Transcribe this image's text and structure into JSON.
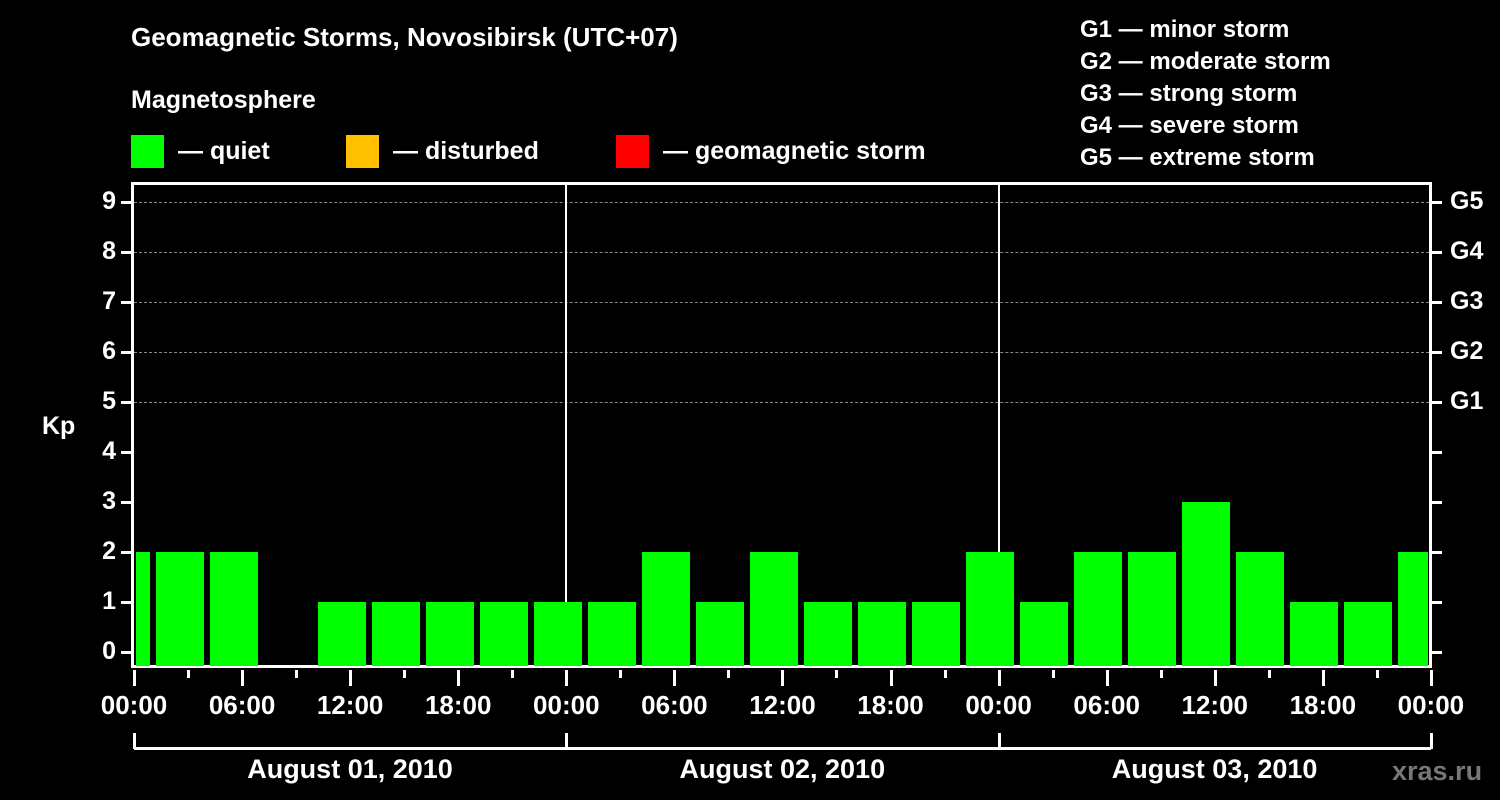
{
  "header": {
    "title": "Geomagnetic Storms, Novosibirsk (UTC+07)",
    "subtitle": "Magnetosphere"
  },
  "legend": [
    {
      "label": "— quiet",
      "color": "#00ff00"
    },
    {
      "label": "— disturbed",
      "color": "#ffc000"
    },
    {
      "label": "— geomagnetic storm",
      "color": "#ff0000"
    }
  ],
  "storm_scale": [
    "G1 — minor storm",
    "G2 — moderate storm",
    "G3 — strong storm",
    "G4 — severe storm",
    "G5 — extreme storm"
  ],
  "axes": {
    "ylabel": "Kp",
    "yticks": [
      "0",
      "1",
      "2",
      "3",
      "4",
      "5",
      "6",
      "7",
      "8",
      "9"
    ],
    "right_ticks": [
      "G1",
      "G2",
      "G3",
      "G4",
      "G5"
    ],
    "xticks": [
      "00:00",
      "06:00",
      "12:00",
      "18:00",
      "00:00",
      "06:00",
      "12:00",
      "18:00",
      "00:00",
      "06:00",
      "12:00",
      "18:00",
      "00:00"
    ],
    "dates": [
      "August 01, 2010",
      "August 02, 2010",
      "August 03, 2010"
    ]
  },
  "watermark": "xras.ru",
  "chart_data": {
    "type": "bar",
    "title": "Geomagnetic Storms, Novosibirsk (UTC+07)",
    "subtitle": "Magnetosphere",
    "xlabel": "",
    "ylabel": "Kp",
    "ylim": [
      0,
      9
    ],
    "grid": "dashed horizontal at Kp 5-9",
    "interval_hours": 3,
    "categories": [
      "Aug01 ~00:00 (partial)",
      "Aug01 ~02:00",
      "Aug01 ~05:00",
      "Aug01 ~08:00",
      "Aug01 ~11:00",
      "Aug01 ~14:00",
      "Aug01 ~17:00",
      "Aug01 ~20:00",
      "Aug01 ~23:00",
      "Aug02 ~02:00",
      "Aug02 ~05:00",
      "Aug02 ~08:00",
      "Aug02 ~11:00",
      "Aug02 ~14:00",
      "Aug02 ~17:00",
      "Aug02 ~20:00",
      "Aug02 ~23:00",
      "Aug03 ~02:00",
      "Aug03 ~05:00",
      "Aug03 ~08:00",
      "Aug03 ~11:00",
      "Aug03 ~14:00",
      "Aug03 ~17:00",
      "Aug03 ~20:00",
      "Aug03 ~23:00 (partial)"
    ],
    "values": [
      2,
      2,
      2,
      0,
      1,
      1,
      1,
      1,
      1,
      1,
      2,
      1,
      2,
      1,
      1,
      1,
      2,
      1,
      2,
      2,
      3,
      2,
      1,
      1,
      2
    ],
    "colors": {
      "quiet": "#00ff00",
      "disturbed": "#ffc000",
      "storm": "#ff0000"
    },
    "legend": [
      "quiet",
      "disturbed",
      "geomagnetic storm"
    ],
    "right_axis": {
      "G1": 5,
      "G2": 6,
      "G3": 7,
      "G4": 8,
      "G5": 9
    }
  }
}
